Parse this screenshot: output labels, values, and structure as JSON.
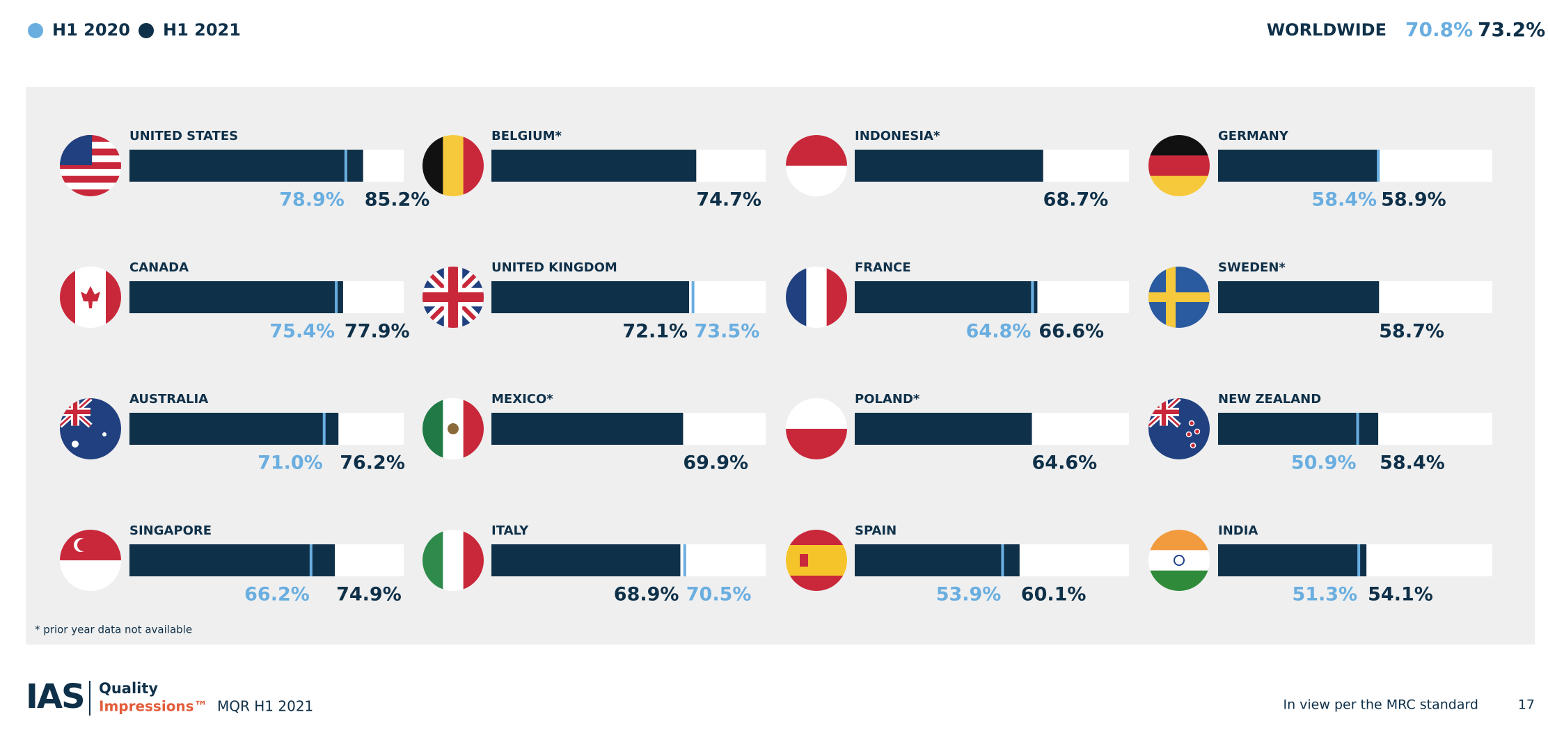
{
  "chart_data": {
    "type": "bar",
    "series": [
      {
        "name": "H1 2020",
        "color": "#6aaee0",
        "values": [
          78.9,
          null,
          null,
          58.4,
          75.4,
          73.5,
          64.8,
          null,
          71.0,
          null,
          null,
          50.9,
          66.2,
          70.5,
          53.9,
          51.3
        ],
        "value_labels": [
          "78.9%",
          null,
          null,
          "58.4%",
          "75.4%",
          "73.5%",
          "64.8%",
          null,
          "71.0%",
          null,
          null,
          "50.9%",
          "66.2%",
          "70.5%",
          "53.9%",
          "51.3%"
        ]
      },
      {
        "name": "H1 2021",
        "color": "#0f3049",
        "values": [
          85.2,
          74.7,
          68.7,
          58.9,
          77.9,
          72.1,
          66.6,
          58.7,
          76.2,
          69.9,
          64.6,
          58.4,
          74.9,
          68.9,
          60.1,
          54.1
        ],
        "value_labels": [
          "85.2%",
          "74.7%",
          "68.7%",
          "58.9%",
          "77.9%",
          "72.1%",
          "66.6%",
          "58.7%",
          "76.2%",
          "69.9%",
          "64.6%",
          "58.4%",
          "74.9%",
          "68.9%",
          "60.1%",
          "54.1%"
        ]
      }
    ],
    "categories": [
      "UNITED STATES",
      "BELGIUM*",
      "INDONESIA*",
      "GERMANY",
      "CANADA",
      "UNITED KINGDOM",
      "FRANCE",
      "SWEDEN*",
      "AUSTRALIA",
      "MEXICO*",
      "POLAND*",
      "NEW ZEALAND",
      "SINGAPORE",
      "ITALY",
      "SPAIN",
      "INDIA"
    ],
    "xlim": [
      0,
      100
    ],
    "worldwide": {
      "label": "WORLDWIDE",
      "values": [
        70.8,
        73.2
      ],
      "value_labels": [
        "70.8%",
        "73.2%"
      ]
    },
    "footnote": "* prior year data not available"
  },
  "footer": {
    "logo": "IAS",
    "brand_top": "Quality",
    "brand_bottom": "Impressions™",
    "report": "MQR H1 2021",
    "note": "In view per the MRC standard",
    "page": "17"
  }
}
